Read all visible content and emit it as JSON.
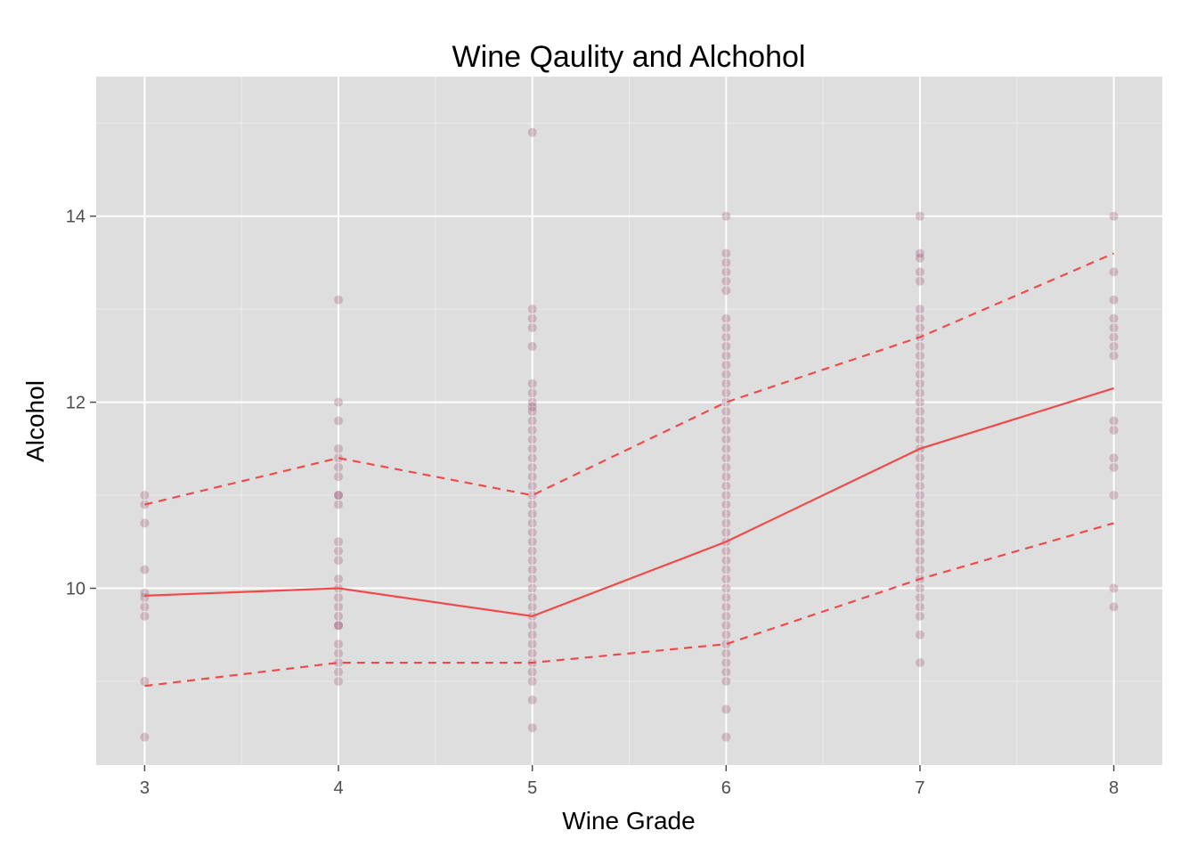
{
  "chart_data": {
    "type": "scatter",
    "title": "Wine Qaulity and Alchohol",
    "xlabel": "Wine Grade",
    "ylabel": "Alcohol",
    "xlim": [
      2.75,
      8.25
    ],
    "ylim": [
      8.1,
      15.5
    ],
    "x_ticks": [
      {
        "value": 3,
        "label": "3"
      },
      {
        "value": 4,
        "label": "4"
      },
      {
        "value": 5,
        "label": "5"
      },
      {
        "value": 6,
        "label": "6"
      },
      {
        "value": 7,
        "label": "7"
      },
      {
        "value": 8,
        "label": "8"
      }
    ],
    "y_ticks": [
      {
        "value": 10,
        "label": "10"
      },
      {
        "value": 12,
        "label": "12"
      },
      {
        "value": 14,
        "label": "14"
      }
    ],
    "x_minor_ticks": [
      3.5,
      4.5,
      5.5,
      6.5,
      7.5
    ],
    "y_minor_ticks": [
      9,
      11,
      13,
      15
    ],
    "grid": true,
    "colors": {
      "panel": "#dedede",
      "grid_major": "#ffffff",
      "grid_minor": "#ececec",
      "point": "#7b1c4a",
      "line": "#f04b4b"
    },
    "points": [
      {
        "grade": 3,
        "alcohol": [
          11.0,
          10.9,
          10.7,
          10.2,
          9.95,
          9.9,
          9.8,
          9.7,
          9.0,
          8.4
        ]
      },
      {
        "grade": 4,
        "alcohol": [
          13.1,
          12.0,
          11.8,
          11.5,
          11.4,
          11.3,
          11.2,
          11.0,
          11.0,
          10.9,
          10.5,
          10.4,
          10.3,
          10.1,
          10.0,
          9.9,
          9.8,
          9.7,
          9.6,
          9.6,
          9.4,
          9.3,
          9.2,
          9.1,
          9.0
        ]
      },
      {
        "grade": 5,
        "alcohol": [
          14.9,
          13.0,
          12.9,
          12.8,
          12.6,
          12.2,
          12.1,
          12.0,
          11.95,
          11.9,
          11.8,
          11.7,
          11.6,
          11.5,
          11.4,
          11.3,
          11.2,
          11.1,
          11.0,
          10.9,
          10.8,
          10.7,
          10.6,
          10.5,
          10.4,
          10.3,
          10.2,
          10.1,
          10.0,
          9.9,
          9.8,
          9.7,
          9.6,
          9.5,
          9.4,
          9.3,
          9.2,
          9.1,
          9.0,
          8.8,
          8.5
        ]
      },
      {
        "grade": 6,
        "alcohol": [
          14.0,
          13.6,
          13.5,
          13.4,
          13.3,
          13.2,
          12.9,
          12.8,
          12.7,
          12.6,
          12.5,
          12.4,
          12.3,
          12.2,
          12.1,
          12.0,
          11.9,
          11.8,
          11.7,
          11.6,
          11.5,
          11.4,
          11.3,
          11.2,
          11.1,
          11.0,
          10.9,
          10.8,
          10.7,
          10.6,
          10.5,
          10.4,
          10.3,
          10.2,
          10.1,
          10.0,
          9.9,
          9.8,
          9.7,
          9.6,
          9.5,
          9.4,
          9.3,
          9.2,
          9.1,
          9.0,
          8.7,
          8.4
        ]
      },
      {
        "grade": 7,
        "alcohol": [
          14.0,
          13.6,
          13.55,
          13.4,
          13.3,
          13.0,
          12.9,
          12.8,
          12.7,
          12.6,
          12.5,
          12.4,
          12.3,
          12.2,
          12.1,
          12.0,
          11.9,
          11.8,
          11.7,
          11.6,
          11.5,
          11.4,
          11.3,
          11.2,
          11.1,
          11.0,
          10.9,
          10.8,
          10.7,
          10.6,
          10.5,
          10.4,
          10.3,
          10.2,
          10.1,
          10.0,
          9.9,
          9.8,
          9.7,
          9.5,
          9.2
        ]
      },
      {
        "grade": 8,
        "alcohol": [
          14.0,
          13.4,
          13.1,
          12.9,
          12.8,
          12.7,
          12.6,
          12.5,
          11.8,
          11.7,
          11.4,
          11.3,
          11.0,
          10.0,
          9.8
        ]
      }
    ],
    "series": [
      {
        "style": "solid",
        "x": [
          3,
          4,
          5,
          6,
          7,
          8
        ],
        "y": [
          9.92,
          10.0,
          9.7,
          10.5,
          11.5,
          12.15
        ]
      },
      {
        "style": "dashed",
        "x": [
          3,
          4,
          5,
          6,
          7,
          8
        ],
        "y": [
          10.9,
          11.4,
          11.0,
          12.0,
          12.7,
          13.6
        ]
      },
      {
        "style": "dashed",
        "x": [
          3,
          4,
          5,
          6,
          7,
          8
        ],
        "y": [
          8.95,
          9.2,
          9.2,
          9.4,
          10.1,
          10.7
        ]
      }
    ]
  }
}
